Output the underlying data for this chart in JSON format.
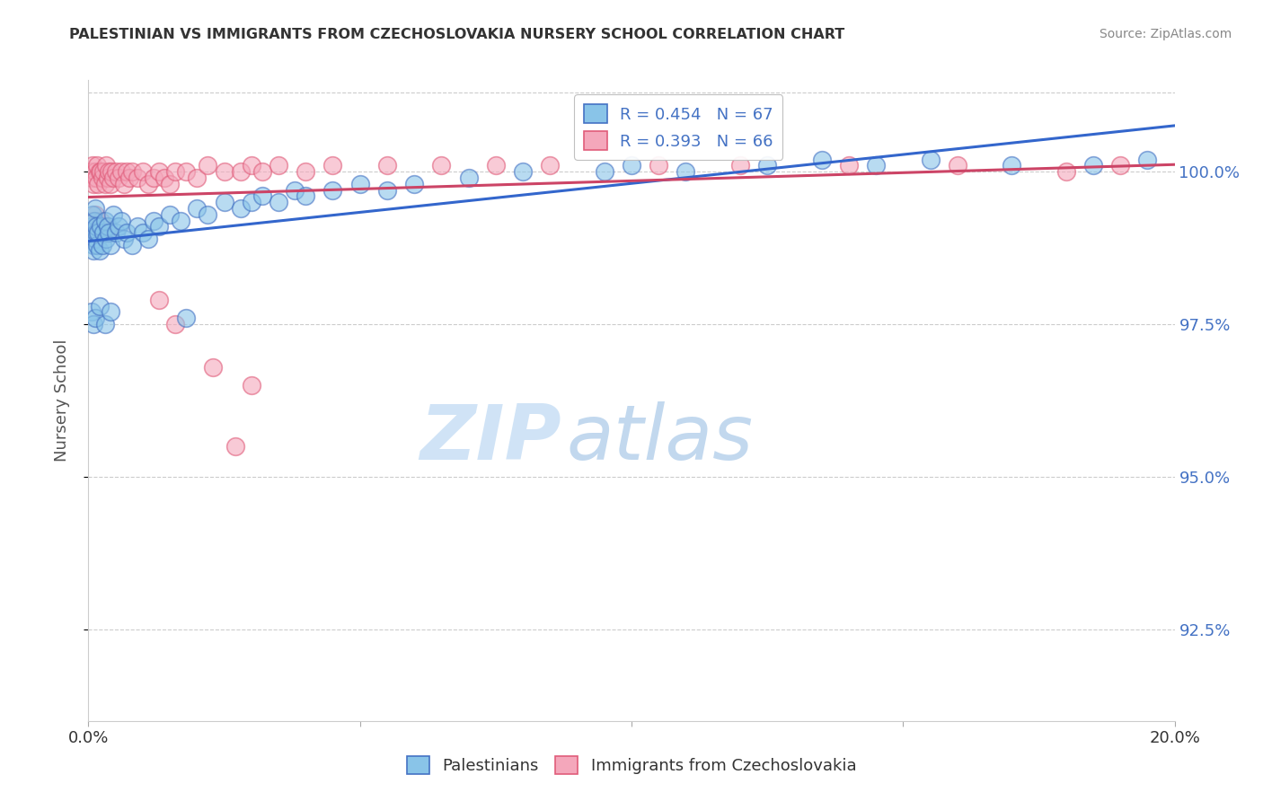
{
  "title": "PALESTINIAN VS IMMIGRANTS FROM CZECHOSLOVAKIA NURSERY SCHOOL CORRELATION CHART",
  "source": "Source: ZipAtlas.com",
  "ylabel": "Nursery School",
  "ytick_values": [
    92.5,
    95.0,
    97.5,
    100.0
  ],
  "xlim": [
    0.0,
    20.0
  ],
  "ylim": [
    91.0,
    101.5
  ],
  "legend_blue_label": "Palestinians",
  "legend_pink_label": "Immigrants from Czechoslovakia",
  "R_blue": 0.454,
  "N_blue": 67,
  "R_pink": 0.393,
  "N_pink": 66,
  "blue_scatter_color": "#89c4e8",
  "blue_edge_color": "#4472c4",
  "pink_scatter_color": "#f4a7bb",
  "pink_edge_color": "#e05c7a",
  "blue_line_color": "#3366cc",
  "pink_line_color": "#cc4466",
  "watermark_zip": "ZIP",
  "watermark_atlas": "atlas",
  "blue_scatter_x": [
    0.05,
    0.07,
    0.08,
    0.09,
    0.1,
    0.11,
    0.12,
    0.13,
    0.14,
    0.15,
    0.16,
    0.18,
    0.2,
    0.22,
    0.25,
    0.28,
    0.3,
    0.33,
    0.35,
    0.38,
    0.4,
    0.45,
    0.5,
    0.55,
    0.6,
    0.65,
    0.7,
    0.8,
    0.9,
    1.0,
    1.1,
    1.2,
    1.3,
    1.5,
    1.7,
    2.0,
    2.2,
    2.5,
    2.8,
    3.0,
    3.2,
    3.5,
    3.8,
    4.0,
    4.5,
    5.0,
    5.5,
    6.0,
    7.0,
    8.0,
    9.5,
    10.0,
    11.0,
    12.5,
    13.5,
    14.5,
    15.5,
    17.0,
    18.5,
    19.5,
    0.06,
    0.09,
    0.13,
    0.2,
    0.3,
    0.4,
    1.8
  ],
  "blue_scatter_y": [
    99.1,
    99.3,
    99.0,
    98.8,
    98.7,
    99.2,
    98.9,
    99.4,
    99.0,
    99.1,
    98.8,
    99.0,
    98.7,
    99.1,
    98.8,
    99.0,
    99.2,
    98.9,
    99.1,
    99.0,
    98.8,
    99.3,
    99.0,
    99.1,
    99.2,
    98.9,
    99.0,
    98.8,
    99.1,
    99.0,
    98.9,
    99.2,
    99.1,
    99.3,
    99.2,
    99.4,
    99.3,
    99.5,
    99.4,
    99.5,
    99.6,
    99.5,
    99.7,
    99.6,
    99.7,
    99.8,
    99.7,
    99.8,
    99.9,
    100.0,
    100.0,
    100.1,
    100.0,
    100.1,
    100.2,
    100.1,
    100.2,
    100.1,
    100.1,
    100.2,
    97.7,
    97.5,
    97.6,
    97.8,
    97.5,
    97.7,
    97.6
  ],
  "pink_scatter_x": [
    0.04,
    0.06,
    0.08,
    0.1,
    0.12,
    0.14,
    0.16,
    0.18,
    0.2,
    0.22,
    0.25,
    0.28,
    0.3,
    0.33,
    0.35,
    0.38,
    0.4,
    0.42,
    0.45,
    0.5,
    0.55,
    0.6,
    0.65,
    0.7,
    0.75,
    0.8,
    0.9,
    1.0,
    1.1,
    1.2,
    1.3,
    1.4,
    1.5,
    1.6,
    1.8,
    2.0,
    2.2,
    2.5,
    2.8,
    3.0,
    3.2,
    3.5,
    4.0,
    4.5,
    5.5,
    6.5,
    7.5,
    8.5,
    10.5,
    12.0,
    14.0,
    16.0,
    18.0,
    19.0,
    0.07,
    0.1,
    0.13,
    0.17,
    0.22,
    0.28,
    0.35,
    1.3,
    1.6,
    2.3,
    3.0,
    2.7
  ],
  "pink_scatter_y": [
    100.0,
    99.9,
    100.1,
    99.8,
    100.0,
    99.9,
    100.1,
    99.8,
    100.0,
    100.0,
    99.9,
    100.0,
    99.8,
    100.1,
    99.9,
    100.0,
    99.8,
    100.0,
    99.9,
    100.0,
    99.9,
    100.0,
    99.8,
    100.0,
    99.9,
    100.0,
    99.9,
    100.0,
    99.8,
    99.9,
    100.0,
    99.9,
    99.8,
    100.0,
    100.0,
    99.9,
    100.1,
    100.0,
    100.0,
    100.1,
    100.0,
    100.1,
    100.0,
    100.1,
    100.1,
    100.1,
    100.1,
    100.1,
    100.1,
    100.1,
    100.1,
    100.1,
    100.0,
    100.1,
    99.2,
    99.1,
    99.3,
    99.0,
    99.2,
    99.1,
    99.0,
    97.9,
    97.5,
    96.8,
    96.5,
    95.5
  ]
}
